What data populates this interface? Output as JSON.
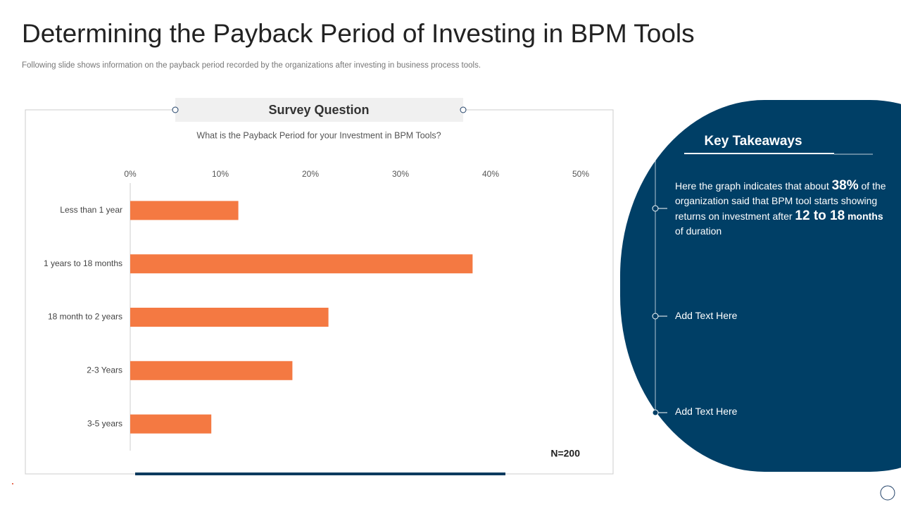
{
  "header": {
    "title": "Determining the Payback Period of Investing in BPM Tools",
    "subtitle": "Following slide shows information on the payback period recorded by the organizations after investing in business process tools."
  },
  "survey_label": "Survey Question",
  "chart_data": {
    "type": "bar",
    "orientation": "horizontal",
    "title": "What is the Payback Period for your Investment  in BPM Tools?",
    "categories": [
      "Less than 1 year",
      "1 years to 18 months",
      "18 month to 2 years",
      "2-3 Years",
      "3-5 years"
    ],
    "values": [
      12,
      38,
      22,
      18,
      9
    ],
    "color": "#f47942",
    "xlim": [
      0,
      50
    ],
    "xticks": [
      {
        "value": 0,
        "label": "0%"
      },
      {
        "value": 10,
        "label": "10%"
      },
      {
        "value": 20,
        "label": "20%"
      },
      {
        "value": 30,
        "label": "30%"
      },
      {
        "value": 40,
        "label": "40%"
      },
      {
        "value": 50,
        "label": "50%"
      }
    ],
    "note": "N=200"
  },
  "takeaways": {
    "title": "Key Takeaways",
    "items": [
      {
        "parts": [
          "Here the graph indicates that about ",
          "38%",
          " of the organization said that BPM tool starts showing returns on investment after ",
          "12 to 18",
          " months",
          " of duration"
        ]
      },
      {
        "parts": [
          "Add Text Here"
        ]
      },
      {
        "parts": [
          "Add Text Here"
        ]
      }
    ]
  }
}
